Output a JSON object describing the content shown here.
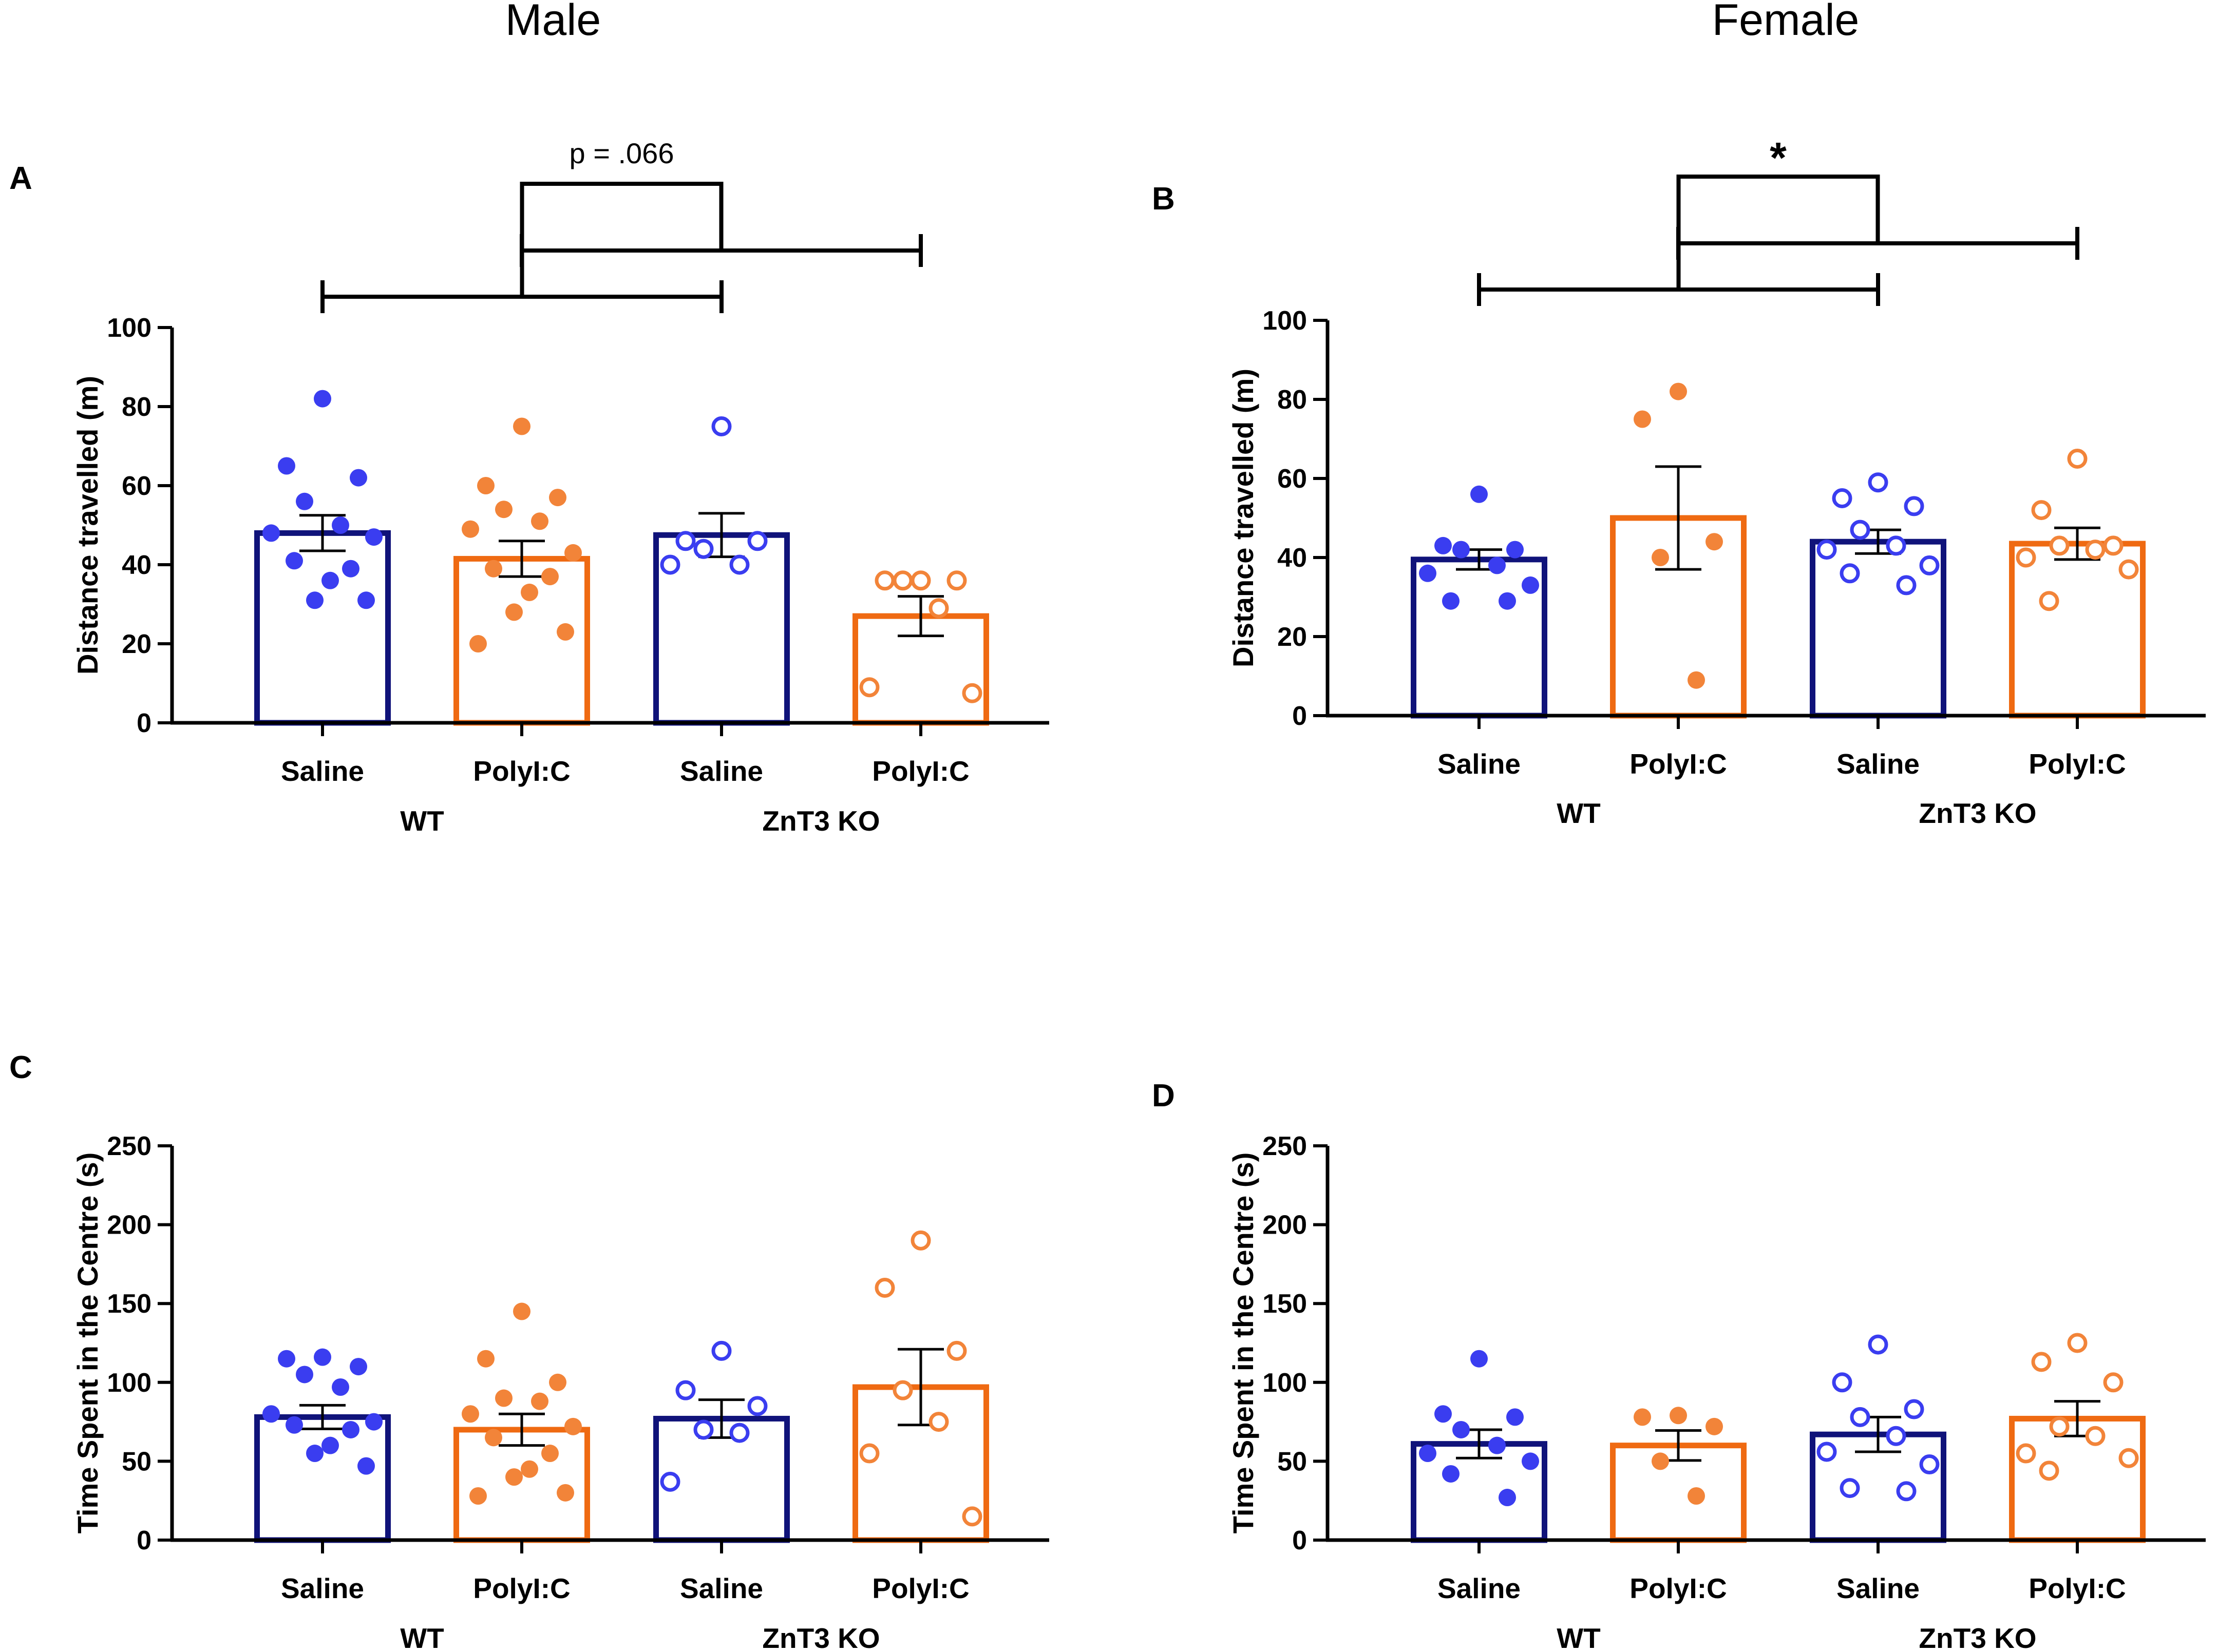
{
  "headers": {
    "left": "Male",
    "right": "Female"
  },
  "colors": {
    "wt_bar": "#10137a",
    "ko_bar": "#ef6a12",
    "saline_dot": "#3a3df0",
    "polyic_dot": "#f28439",
    "axis": "#000000"
  },
  "chart_data": [
    {
      "panel": "A",
      "type": "bar",
      "sex": "Male",
      "ylabel": "Distance travelled (m)",
      "ylim": [
        0,
        100
      ],
      "yticks": [
        0,
        20,
        40,
        60,
        80,
        100
      ],
      "categories": [
        "Saline",
        "PolyI:C",
        "Saline",
        "PolyI:C"
      ],
      "groups": [
        {
          "label": "WT",
          "categories": [
            0,
            1
          ]
        },
        {
          "label": "ZnT3 KO",
          "categories": [
            2,
            3
          ]
        }
      ],
      "series": [
        {
          "name": "WT Saline",
          "mean": 48,
          "sem": 4.5,
          "points": [
            82,
            65,
            62,
            56,
            50,
            48,
            47,
            41,
            39,
            36,
            31,
            31
          ],
          "filled": true,
          "dot": "saline"
        },
        {
          "name": "WT PolyI:C",
          "mean": 41.5,
          "sem": 4.5,
          "points": [
            75,
            60,
            57,
            54,
            51,
            49,
            43,
            39,
            37,
            33,
            28,
            23,
            20
          ],
          "filled": true,
          "dot": "polyic"
        },
        {
          "name": "ZnT3 KO Saline",
          "mean": 47.5,
          "sem": 5.5,
          "points": [
            75,
            46,
            46,
            44,
            40,
            40
          ],
          "filled": false,
          "dot": "saline"
        },
        {
          "name": "ZnT3 KO PolyI:C",
          "mean": 27,
          "sem": 5,
          "points": [
            36,
            36,
            36,
            36,
            29,
            9,
            7.5
          ],
          "filled": false,
          "dot": "polyic"
        }
      ],
      "annotation": {
        "text": "p = .066"
      }
    },
    {
      "panel": "B",
      "type": "bar",
      "sex": "Female",
      "ylabel": "Distance travelled (m)",
      "ylim": [
        0,
        100
      ],
      "yticks": [
        0,
        20,
        40,
        60,
        80,
        100
      ],
      "categories": [
        "Saline",
        "PolyI:C",
        "Saline",
        "PolyI:C"
      ],
      "groups": [
        {
          "label": "WT",
          "categories": [
            0,
            1
          ]
        },
        {
          "label": "ZnT3 KO",
          "categories": [
            2,
            3
          ]
        }
      ],
      "series": [
        {
          "name": "WT Saline",
          "mean": 39.5,
          "sem": 2.5,
          "points": [
            56,
            43,
            42,
            42,
            38,
            36,
            33,
            29,
            29
          ],
          "filled": true,
          "dot": "saline"
        },
        {
          "name": "WT PolyI:C",
          "mean": 50,
          "sem": 13,
          "points": [
            82,
            75,
            44,
            40,
            9
          ],
          "filled": true,
          "dot": "polyic"
        },
        {
          "name": "ZnT3 KO Saline",
          "mean": 44,
          "sem": 3,
          "points": [
            59,
            55,
            53,
            47,
            43,
            42,
            38,
            36,
            33
          ],
          "filled": false,
          "dot": "saline"
        },
        {
          "name": "ZnT3 KO PolyI:C",
          "mean": 43.5,
          "sem": 4,
          "points": [
            65,
            52,
            43,
            43,
            42,
            40,
            37,
            29
          ],
          "filled": false,
          "dot": "polyic"
        }
      ],
      "annotation": {
        "text": "*"
      }
    },
    {
      "panel": "C",
      "type": "bar",
      "sex": "Male",
      "ylabel": "Time Spent in the Centre (s)",
      "ylim": [
        0,
        250
      ],
      "yticks": [
        0,
        50,
        100,
        150,
        200,
        250
      ],
      "categories": [
        "Saline",
        "PolyI:C",
        "Saline",
        "PolyI:C"
      ],
      "groups": [
        {
          "label": "WT",
          "categories": [
            0,
            1
          ]
        },
        {
          "label": "ZnT3 KO",
          "categories": [
            2,
            3
          ]
        }
      ],
      "series": [
        {
          "name": "WT Saline",
          "mean": 78,
          "sem": 7.5,
          "points": [
            116,
            115,
            110,
            105,
            97,
            80,
            75,
            73,
            70,
            60,
            55,
            47
          ],
          "filled": true,
          "dot": "saline"
        },
        {
          "name": "WT PolyI:C",
          "mean": 70,
          "sem": 10,
          "points": [
            145,
            115,
            100,
            90,
            88,
            80,
            72,
            65,
            55,
            45,
            40,
            30,
            28
          ],
          "filled": true,
          "dot": "polyic"
        },
        {
          "name": "ZnT3 KO Saline",
          "mean": 77,
          "sem": 12,
          "points": [
            120,
            95,
            85,
            70,
            68,
            37
          ],
          "filled": false,
          "dot": "saline"
        },
        {
          "name": "ZnT3 KO PolyI:C",
          "mean": 97,
          "sem": 24,
          "points": [
            190,
            160,
            120,
            95,
            75,
            55,
            15
          ],
          "filled": false,
          "dot": "polyic"
        }
      ],
      "annotation": null
    },
    {
      "panel": "D",
      "type": "bar",
      "sex": "Female",
      "ylabel": "Time Spent in the Centre (s)",
      "ylim": [
        0,
        250
      ],
      "yticks": [
        0,
        50,
        100,
        150,
        200,
        250
      ],
      "categories": [
        "Saline",
        "PolyI:C",
        "Saline",
        "PolyI:C"
      ],
      "groups": [
        {
          "label": "WT",
          "categories": [
            0,
            1
          ]
        },
        {
          "label": "ZnT3 KO",
          "categories": [
            2,
            3
          ]
        }
      ],
      "series": [
        {
          "name": "WT Saline",
          "mean": 61,
          "sem": 9,
          "points": [
            115,
            80,
            78,
            70,
            60,
            55,
            50,
            42,
            27
          ],
          "filled": true,
          "dot": "saline"
        },
        {
          "name": "WT PolyI:C",
          "mean": 60,
          "sem": 9.5,
          "points": [
            79,
            78,
            72,
            50,
            28
          ],
          "filled": true,
          "dot": "polyic"
        },
        {
          "name": "ZnT3 KO Saline",
          "mean": 67,
          "sem": 11,
          "points": [
            124,
            100,
            83,
            78,
            66,
            56,
            48,
            33,
            31
          ],
          "filled": false,
          "dot": "saline"
        },
        {
          "name": "ZnT3 KO PolyI:C",
          "mean": 77,
          "sem": 11,
          "points": [
            125,
            113,
            100,
            72,
            66,
            55,
            52,
            44
          ],
          "filled": false,
          "dot": "polyic"
        }
      ],
      "annotation": null
    }
  ]
}
